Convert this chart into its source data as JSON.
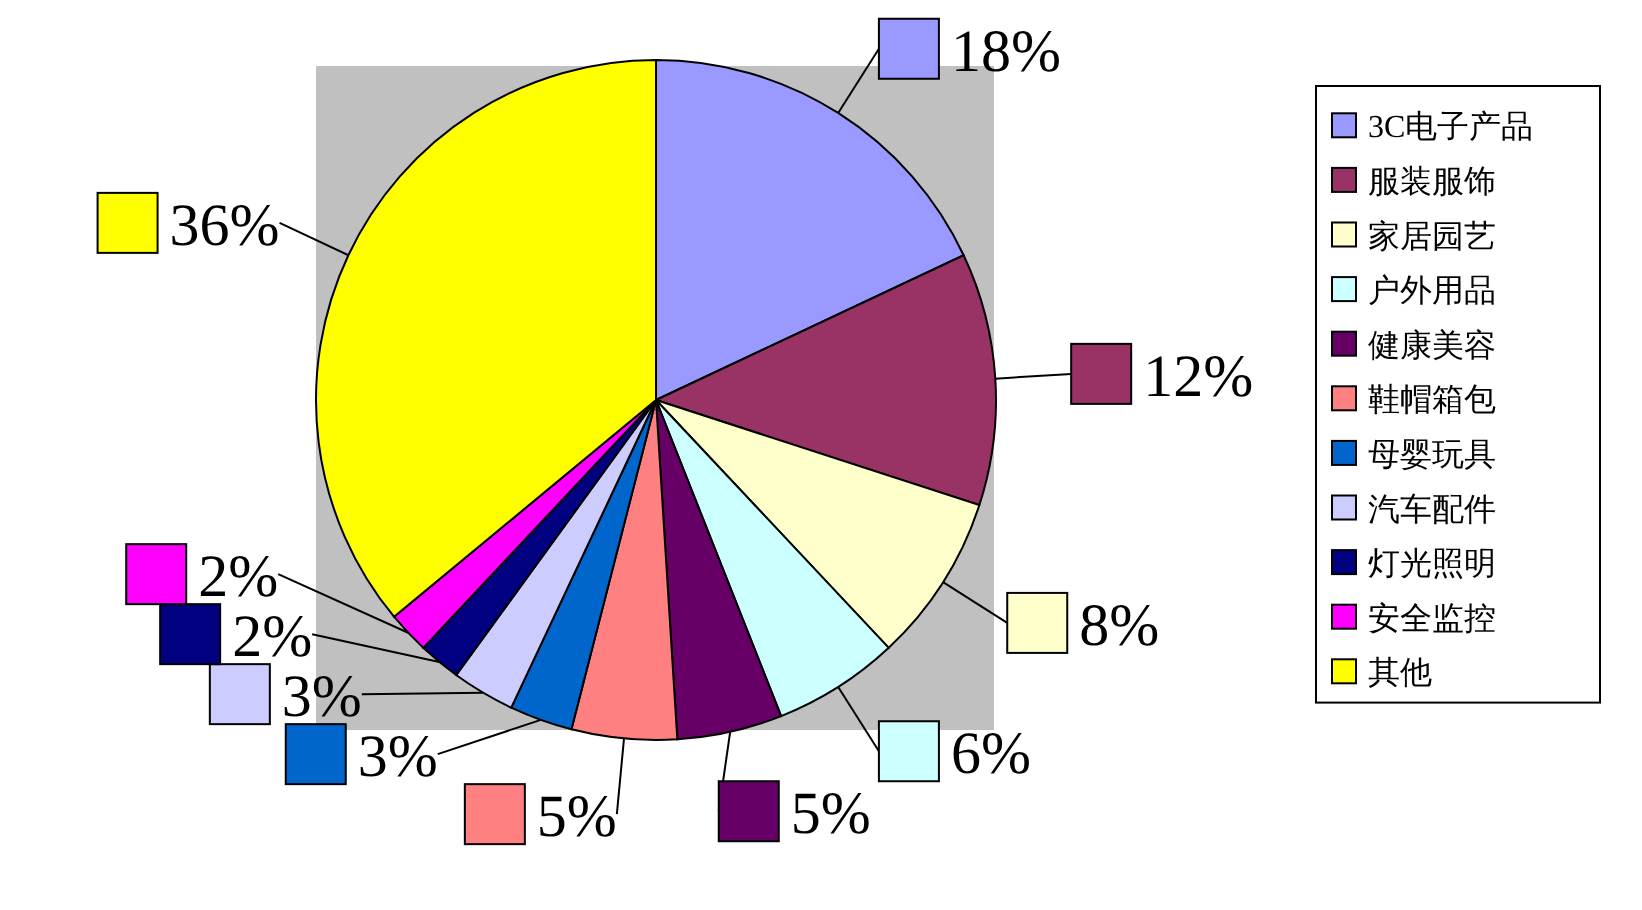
{
  "chart_data": {
    "type": "pie",
    "categories": [
      "3C电子产品",
      "服装服饰",
      "家居园艺",
      "户外用品",
      "健康美容",
      "鞋帽箱包",
      "母婴玩具",
      "汽车配件",
      "灯光照明",
      "安全监控",
      "其他"
    ],
    "values": [
      18,
      12,
      8,
      6,
      5,
      5,
      3,
      3,
      2,
      2,
      36
    ],
    "value_labels": [
      "18%",
      "12%",
      "8%",
      "6%",
      "5%",
      "5%",
      "3%",
      "3%",
      "2%",
      "2%",
      "36%"
    ],
    "colors": [
      "#9999ff",
      "#993366",
      "#ffffcc",
      "#ccffff",
      "#660066",
      "#ff8080",
      "#0066cc",
      "#ccccff",
      "#000080",
      "#ff00ff",
      "#ffff00"
    ],
    "legend": "right"
  }
}
